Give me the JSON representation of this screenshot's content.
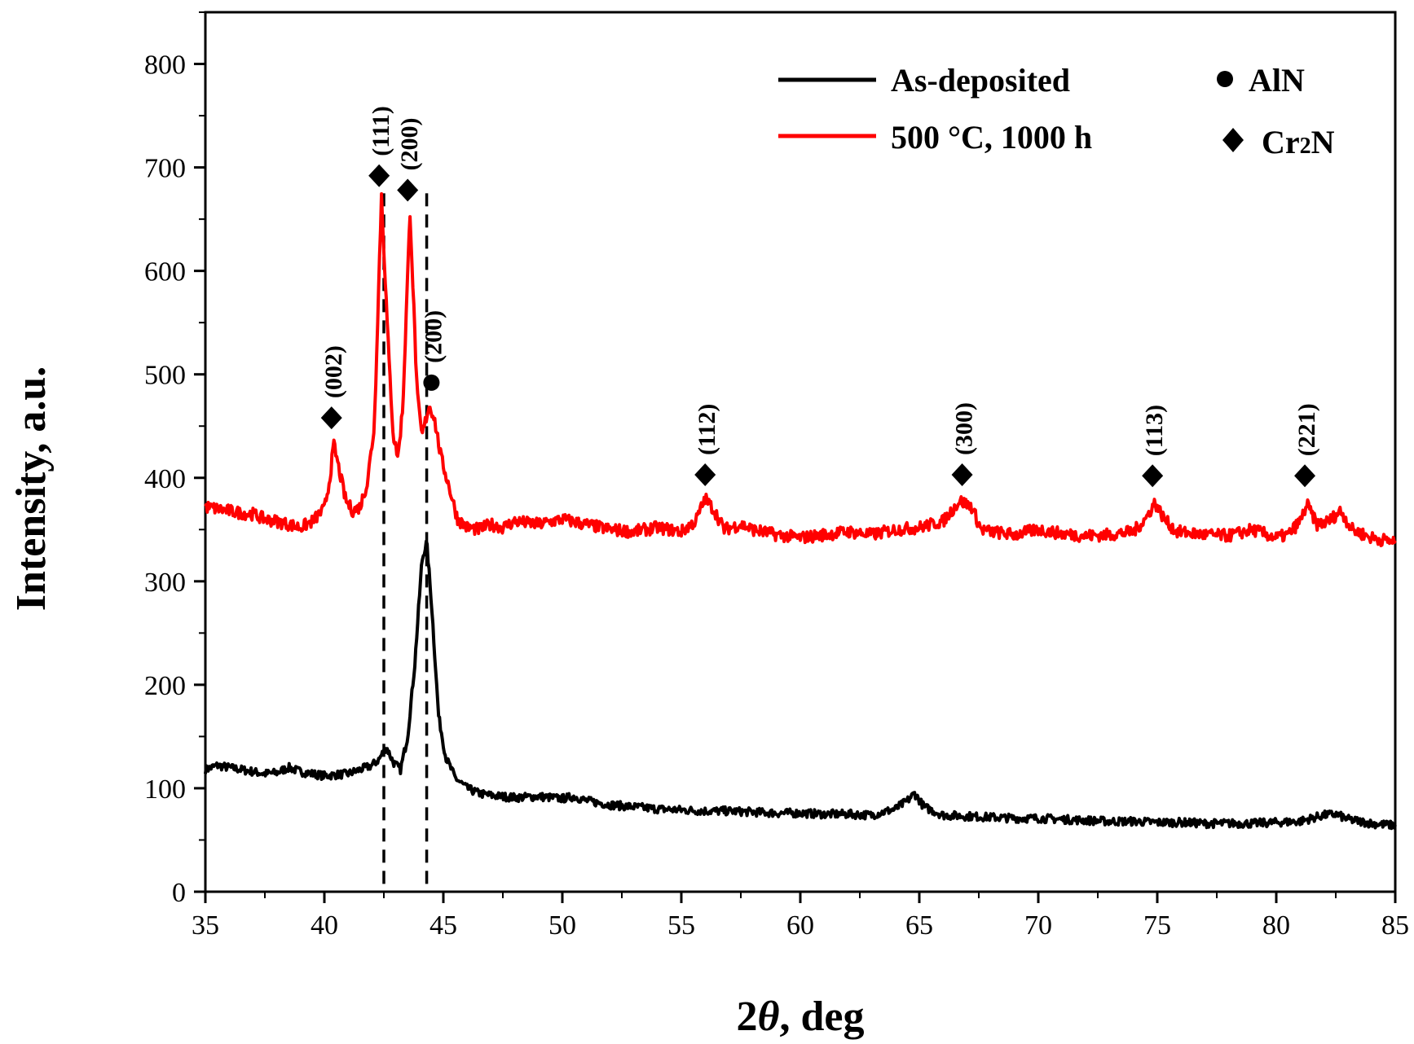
{
  "chart_data": {
    "type": "line",
    "title": "",
    "xlabel_prefix": "2",
    "xlabel_symbol": "θ",
    "xlabel_suffix": ", deg",
    "ylabel": "Intensity, a.u.",
    "xlim": [
      35,
      85
    ],
    "ylim": [
      0,
      850
    ],
    "xticks": [
      "35",
      "40",
      "45",
      "50",
      "55",
      "60",
      "65",
      "70",
      "75",
      "80",
      "85"
    ],
    "yticks": [
      "0",
      "100",
      "200",
      "300",
      "400",
      "500",
      "600",
      "700",
      "800"
    ],
    "series": [
      {
        "name": "As-deposited",
        "color": "#000000",
        "points": [
          [
            35,
            118
          ],
          [
            35.5,
            122
          ],
          [
            36,
            120
          ],
          [
            36.5,
            118
          ],
          [
            37,
            116
          ],
          [
            37.5,
            114
          ],
          [
            38,
            115
          ],
          [
            38.5,
            120
          ],
          [
            39,
            116
          ],
          [
            39.5,
            114
          ],
          [
            40,
            112
          ],
          [
            40.5,
            113
          ],
          [
            41,
            114
          ],
          [
            41.5,
            118
          ],
          [
            42,
            122
          ],
          [
            42.3,
            128
          ],
          [
            42.6,
            140
          ],
          [
            42.9,
            125
          ],
          [
            43.2,
            118
          ],
          [
            43.5,
            150
          ],
          [
            43.8,
            220
          ],
          [
            44.1,
            320
          ],
          [
            44.3,
            338
          ],
          [
            44.5,
            280
          ],
          [
            44.8,
            170
          ],
          [
            45.1,
            130
          ],
          [
            45.5,
            110
          ],
          [
            46,
            100
          ],
          [
            46.5,
            95
          ],
          [
            47,
            93
          ],
          [
            48,
            91
          ],
          [
            49,
            92
          ],
          [
            50,
            90
          ],
          [
            50.5,
            92
          ],
          [
            51,
            88
          ],
          [
            52,
            84
          ],
          [
            53,
            82
          ],
          [
            54,
            80
          ],
          [
            55,
            79
          ],
          [
            56,
            78
          ],
          [
            57,
            78
          ],
          [
            58,
            77
          ],
          [
            59,
            76
          ],
          [
            60,
            76
          ],
          [
            61,
            75
          ],
          [
            62,
            75
          ],
          [
            63,
            74
          ],
          [
            64,
            80
          ],
          [
            64.5,
            88
          ],
          [
            64.8,
            95
          ],
          [
            65.2,
            82
          ],
          [
            66,
            74
          ],
          [
            67,
            73
          ],
          [
            68,
            72
          ],
          [
            69,
            71
          ],
          [
            70,
            71
          ],
          [
            71,
            70
          ],
          [
            72,
            69
          ],
          [
            73,
            68
          ],
          [
            74,
            68
          ],
          [
            75,
            67
          ],
          [
            76,
            67
          ],
          [
            77,
            66
          ],
          [
            78,
            66
          ],
          [
            79,
            66
          ],
          [
            80,
            67
          ],
          [
            81,
            68
          ],
          [
            82,
            74
          ],
          [
            82.5,
            75
          ],
          [
            83,
            70
          ],
          [
            84,
            66
          ],
          [
            85,
            64
          ]
        ]
      },
      {
        "name": "500 °C, 1000 h",
        "color": "#ff0000",
        "points": [
          [
            35,
            372
          ],
          [
            35.5,
            370
          ],
          [
            36,
            368
          ],
          [
            36.5,
            366
          ],
          [
            37,
            365
          ],
          [
            37.5,
            360
          ],
          [
            38,
            358
          ],
          [
            38.5,
            355
          ],
          [
            39,
            352
          ],
          [
            39.5,
            358
          ],
          [
            40,
            370
          ],
          [
            40.2,
            395
          ],
          [
            40.4,
            432
          ],
          [
            40.6,
            410
          ],
          [
            40.9,
            378
          ],
          [
            41.2,
            368
          ],
          [
            41.5,
            372
          ],
          [
            41.8,
            395
          ],
          [
            42.1,
            450
          ],
          [
            42.4,
            673
          ],
          [
            42.7,
            520
          ],
          [
            42.9,
            440
          ],
          [
            43.1,
            420
          ],
          [
            43.3,
            470
          ],
          [
            43.6,
            658
          ],
          [
            43.9,
            480
          ],
          [
            44.1,
            440
          ],
          [
            44.4,
            470
          ],
          [
            44.6,
            460
          ],
          [
            44.9,
            420
          ],
          [
            45.2,
            395
          ],
          [
            45.6,
            360
          ],
          [
            46,
            352
          ],
          [
            46.5,
            350
          ],
          [
            47,
            355
          ],
          [
            47.5,
            352
          ],
          [
            48,
            358
          ],
          [
            49,
            355
          ],
          [
            50,
            360
          ],
          [
            51,
            355
          ],
          [
            52,
            350
          ],
          [
            53,
            348
          ],
          [
            54,
            352
          ],
          [
            55,
            348
          ],
          [
            55.6,
            358
          ],
          [
            56,
            380
          ],
          [
            56.4,
            368
          ],
          [
            56.8,
            350
          ],
          [
            57.5,
            355
          ],
          [
            58,
            350
          ],
          [
            59,
            345
          ],
          [
            60,
            342
          ],
          [
            61,
            345
          ],
          [
            62,
            348
          ],
          [
            63,
            345
          ],
          [
            64,
            350
          ],
          [
            65,
            352
          ],
          [
            66,
            358
          ],
          [
            66.7,
            378
          ],
          [
            67.2,
            372
          ],
          [
            67.6,
            350
          ],
          [
            68,
            348
          ],
          [
            69,
            345
          ],
          [
            70,
            350
          ],
          [
            71,
            346
          ],
          [
            72,
            344
          ],
          [
            73,
            345
          ],
          [
            74,
            348
          ],
          [
            74.5,
            360
          ],
          [
            74.9,
            376
          ],
          [
            75.3,
            360
          ],
          [
            75.8,
            348
          ],
          [
            77,
            345
          ],
          [
            78,
            344
          ],
          [
            79,
            350
          ],
          [
            80,
            342
          ],
          [
            80.5,
            345
          ],
          [
            81,
            358
          ],
          [
            81.3,
            374
          ],
          [
            81.7,
            355
          ],
          [
            82.2,
            358
          ],
          [
            82.7,
            368
          ],
          [
            83.2,
            350
          ],
          [
            84,
            342
          ],
          [
            85,
            338
          ]
        ]
      }
    ],
    "vlines": [
      42.5,
      44.3
    ],
    "peaks": [
      {
        "label": "(002)",
        "marker": "diamond",
        "x": 40.3,
        "y": 458
      },
      {
        "label": "(111)",
        "marker": "diamond",
        "x": 42.3,
        "y": 692
      },
      {
        "label": "(200)",
        "marker": "diamond",
        "x": 43.5,
        "y": 678
      },
      {
        "label": "(200)",
        "marker": "circle",
        "x": 44.5,
        "y": 492
      },
      {
        "label": "(112)",
        "marker": "diamond",
        "x": 56.0,
        "y": 403
      },
      {
        "label": "(300)",
        "marker": "diamond",
        "x": 66.8,
        "y": 403
      },
      {
        "label": "(113)",
        "marker": "diamond",
        "x": 74.8,
        "y": 402
      },
      {
        "label": "(221)",
        "marker": "diamond",
        "x": 81.2,
        "y": 402
      }
    ],
    "legend": {
      "placement": "top-right",
      "lines": [
        {
          "label": "As-deposited",
          "color": "#000000"
        },
        {
          "label": "500 °C, 1000 h",
          "color": "#ff0000"
        }
      ],
      "markers": [
        {
          "label": "AlN",
          "marker": "circle"
        },
        {
          "label_main": "Cr",
          "label_sub": "2",
          "label_tail": "N",
          "marker": "diamond"
        }
      ]
    }
  }
}
